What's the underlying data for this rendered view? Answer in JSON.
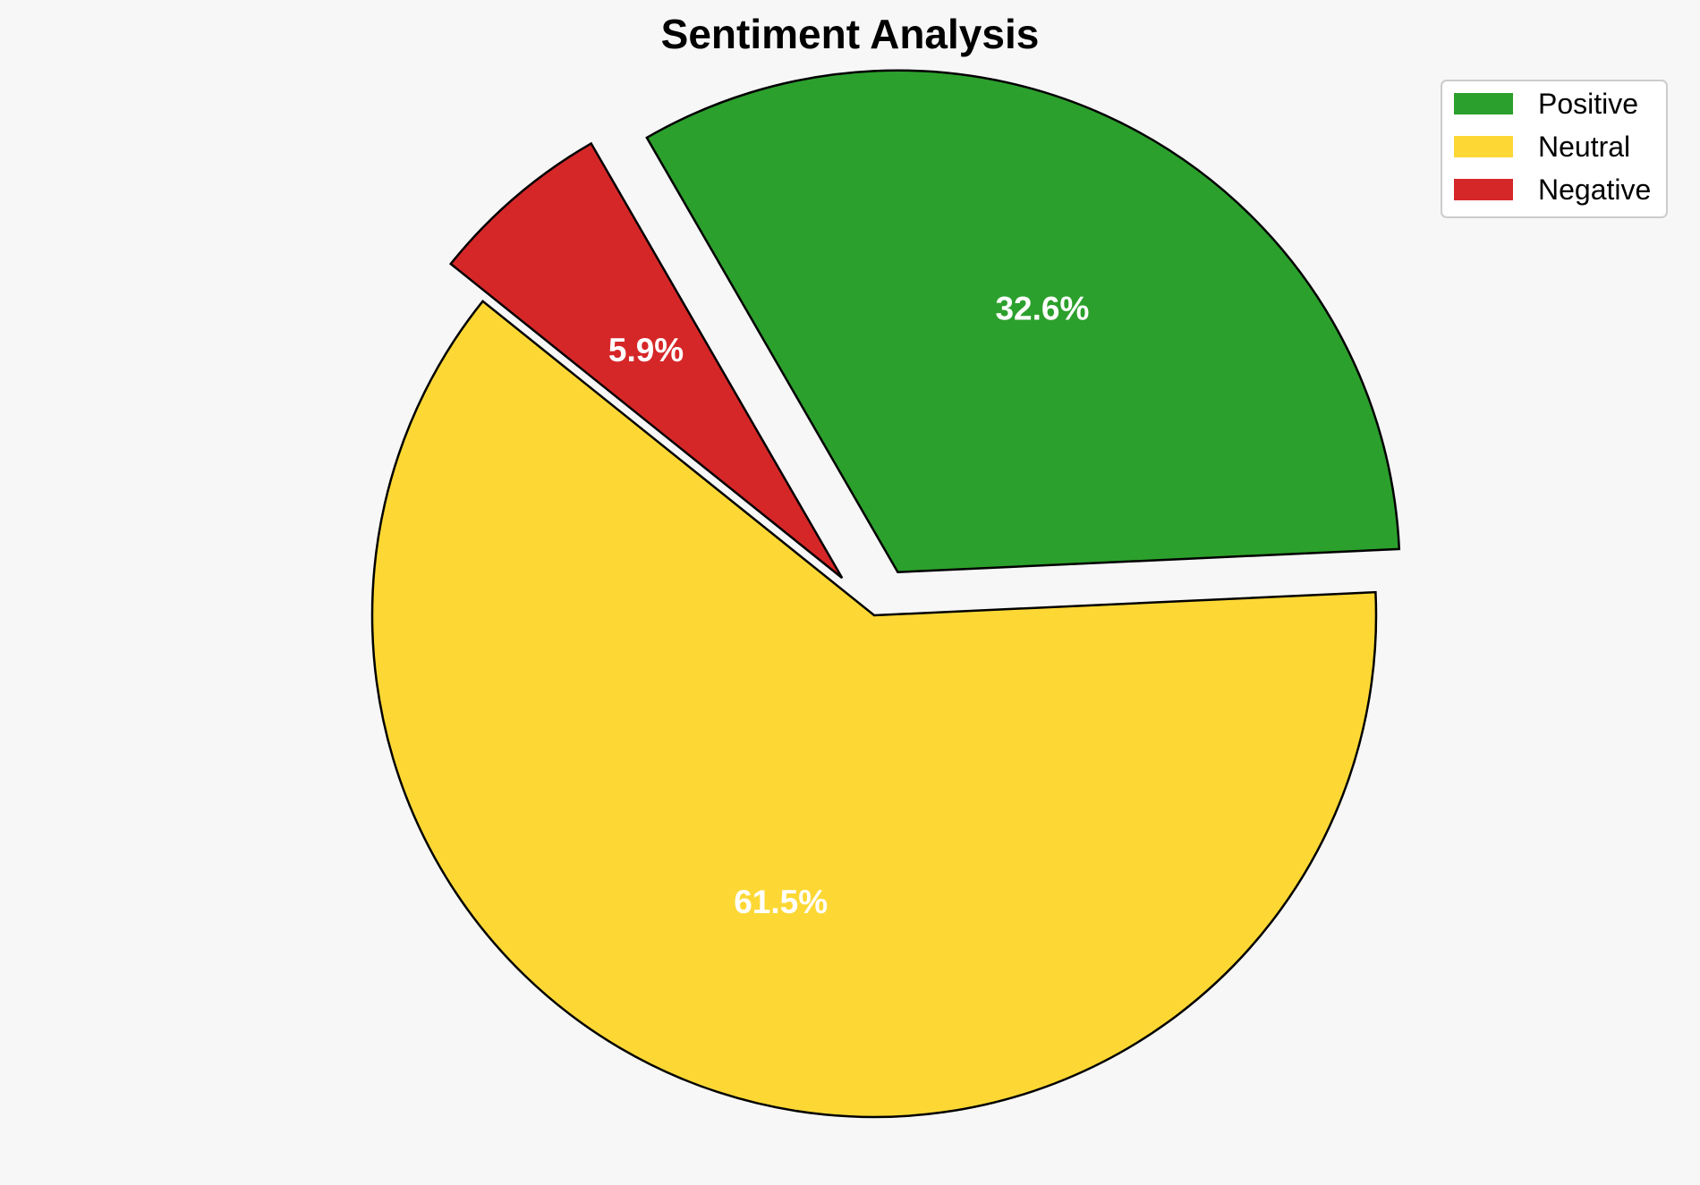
{
  "chart_data": {
    "type": "pie",
    "title": "Sentiment Analysis",
    "categories": [
      "Positive",
      "Neutral",
      "Negative"
    ],
    "values": [
      32.6,
      61.5,
      5.9
    ],
    "labels": [
      "32.6%",
      "61.5%",
      "5.9%"
    ],
    "colors": [
      "#2ca02c",
      "#fdd835",
      "#d62728"
    ],
    "exploded": [
      true,
      false,
      true
    ],
    "legend": {
      "position": "top-right",
      "entries": [
        "Positive",
        "Neutral",
        "Negative"
      ]
    }
  }
}
